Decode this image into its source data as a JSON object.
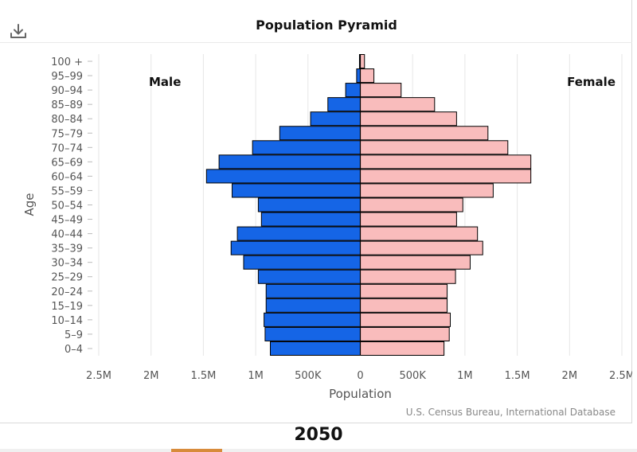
{
  "header": {
    "title": "Population Pyramid",
    "download_icon": "download-icon"
  },
  "legend": {
    "male": "Male",
    "female": "Female"
  },
  "source": "U.S. Census Bureau, International Database",
  "year": "2050",
  "colors": {
    "male": "#1565e6",
    "female": "#f9bcbc",
    "grid": "#e6e6e6",
    "axis": "#555555"
  },
  "chart_data": {
    "type": "bar",
    "orientation": "horizontal-pyramid",
    "title": "Population Pyramid",
    "xlabel": "Population",
    "ylabel": "Age",
    "xlim": [
      -2500000,
      2500000
    ],
    "x_ticks": [
      -2500000,
      -2000000,
      -1500000,
      -1000000,
      -500000,
      0,
      500000,
      1000000,
      1500000,
      2000000,
      2500000
    ],
    "x_tick_labels": [
      "2.5M",
      "2M",
      "1.5M",
      "1M",
      "500K",
      "0",
      "500K",
      "1M",
      "1.5M",
      "2M",
      "2.5M"
    ],
    "grid": true,
    "categories": [
      "100 +",
      "95–99",
      "90–94",
      "85–89",
      "80–84",
      "75–79",
      "70–74",
      "65–69",
      "60–64",
      "55–59",
      "50–54",
      "45–49",
      "40–44",
      "35–39",
      "30–34",
      "25–29",
      "20–24",
      "15–19",
      "10–14",
      "5–9",
      "0–4"
    ],
    "series": [
      {
        "name": "Male",
        "values": [
          8000,
          35000,
          140000,
          310000,
          475000,
          770000,
          1030000,
          1350000,
          1470000,
          1225000,
          975000,
          945000,
          1175000,
          1235000,
          1115000,
          975000,
          900000,
          900000,
          920000,
          910000,
          860000
        ]
      },
      {
        "name": "Female",
        "values": [
          40000,
          130000,
          390000,
          710000,
          920000,
          1220000,
          1410000,
          1630000,
          1630000,
          1270000,
          980000,
          920000,
          1120000,
          1170000,
          1050000,
          910000,
          830000,
          830000,
          860000,
          850000,
          800000
        ]
      }
    ]
  }
}
